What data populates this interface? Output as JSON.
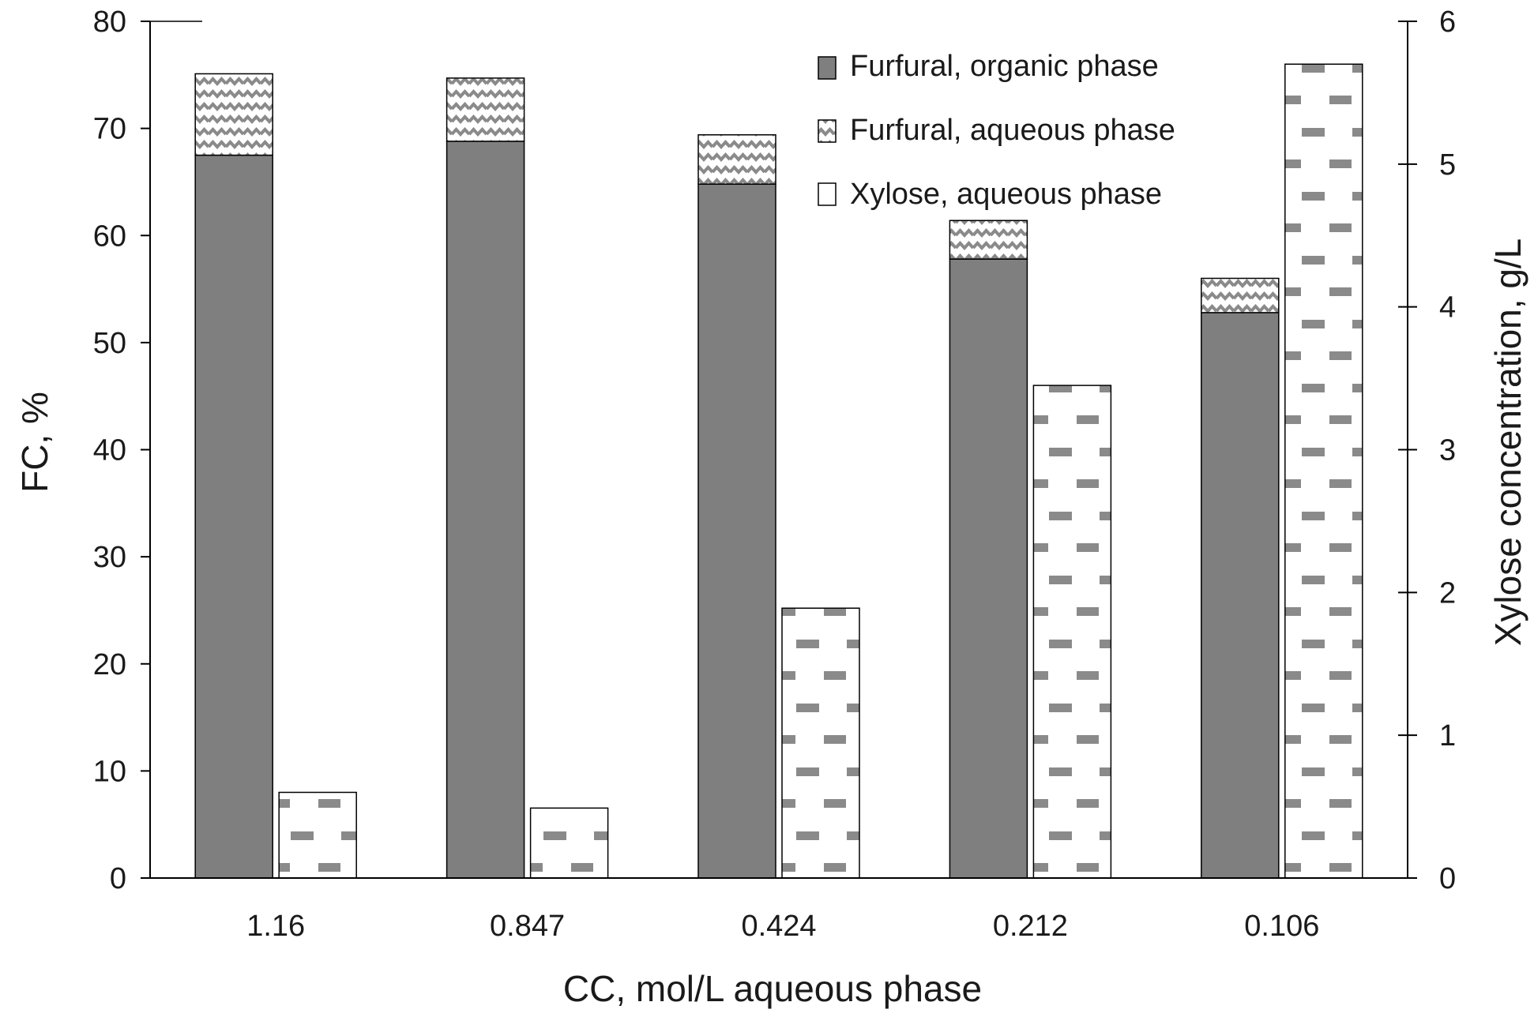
{
  "chart_data": {
    "type": "bar",
    "subtype": "stacked-bar-with-secondary-axis",
    "categories": [
      "1.16",
      "0.847",
      "0.424",
      "0.212",
      "0.106"
    ],
    "xlabel": "CC, mol/L aqueous phase",
    "ylabel": "FC, %",
    "y2label": "Xylose concentration, g/L",
    "ylim": [
      0,
      80
    ],
    "y2lim": [
      0,
      6
    ],
    "yticks": [
      "0",
      "10",
      "20",
      "30",
      "40",
      "50",
      "60",
      "70",
      "80"
    ],
    "y2ticks": [
      "0",
      "1",
      "2",
      "3",
      "4",
      "5",
      "6"
    ],
    "grid": false,
    "legend_position": "top-right",
    "series": [
      {
        "name": "Furfural, organic phase",
        "axis": "left",
        "stack": "furfural",
        "color": "#7f7f7f",
        "pattern": "solid",
        "values": [
          67.5,
          68.8,
          64.8,
          57.8,
          52.8
        ]
      },
      {
        "name": "Furfural, aqueous phase",
        "axis": "left",
        "stack": "furfural",
        "color": "#7f7f7f",
        "pattern": "zigzag",
        "values": [
          7.6,
          5.9,
          4.6,
          3.6,
          3.2
        ]
      },
      {
        "name": "Xylose, aqueous phase",
        "axis": "right",
        "stack": "xylose",
        "color": "#7f7f7f",
        "pattern": "dashes",
        "values": [
          0.6,
          0.49,
          1.89,
          3.45,
          5.7
        ]
      }
    ]
  }
}
